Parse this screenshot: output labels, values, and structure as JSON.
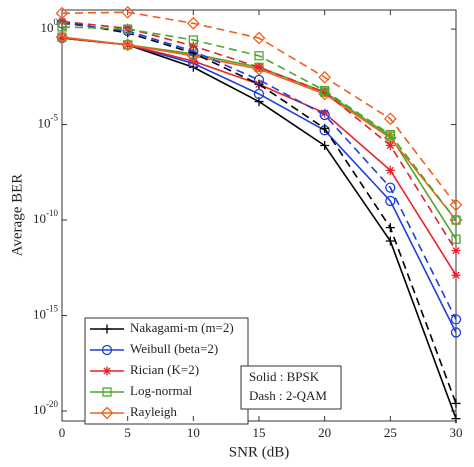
{
  "chart_data": {
    "type": "line",
    "xlabel": "SNR (dB)",
    "ylabel": "Average BER",
    "x": [
      0,
      5,
      10,
      15,
      20,
      25,
      30
    ],
    "xlim": [
      0,
      30
    ],
    "xticks": [
      0,
      5,
      10,
      15,
      20,
      25,
      30
    ],
    "ylim": [
      3e-21,
      10
    ],
    "log_y": true,
    "yticks": [
      {
        "value": 1,
        "label": "10^0"
      },
      {
        "value": 1e-05,
        "label": "10^-5"
      },
      {
        "value": 1e-10,
        "label": "10^-10"
      },
      {
        "value": 1e-15,
        "label": "10^-15"
      },
      {
        "value": 1e-20,
        "label": "10^-20"
      }
    ],
    "legend": "lower left",
    "series": [
      {
        "name": "Nakagami-m (m=2)",
        "color": "#000000",
        "marker": "plus",
        "dash": false,
        "values": [
          0.34,
          0.15,
          0.01,
          0.00016,
          8e-07,
          8e-12,
          4e-21
        ]
      },
      {
        "name": "Weibull (beta=2)",
        "color": "#1d3fe0",
        "marker": "circle",
        "dash": false,
        "values": [
          0.34,
          0.15,
          0.016,
          0.0004,
          5e-06,
          1e-09,
          1.3e-16
        ]
      },
      {
        "name": "Rician (K=2)",
        "color": "#e8202a",
        "marker": "star",
        "dash": false,
        "values": [
          0.34,
          0.15,
          0.021,
          0.0013,
          4e-05,
          4e-08,
          1.3e-13
        ]
      },
      {
        "name": "Log-normal",
        "color": "#4ca82a",
        "marker": "square",
        "dash": false,
        "values": [
          0.38,
          0.15,
          0.05,
          0.01,
          0.0005,
          2.5e-06,
          1e-11
        ]
      },
      {
        "name": "Rayleigh",
        "color": "#f06020",
        "marker": "diamond",
        "dash": false,
        "values": [
          0.38,
          0.15,
          0.04,
          0.008,
          0.0004,
          2e-06,
          1e-10
        ]
      },
      {
        "color": "#000000",
        "dash": true,
        "values": [
          2.5,
          0.63,
          0.056,
          0.0013,
          6.3e-06,
          4e-11,
          2.5e-20
        ]
      },
      {
        "color": "#1d3fe0",
        "dash": true,
        "values": [
          2,
          0.8,
          0.07,
          0.0022,
          3.2e-05,
          5e-09,
          6.3e-16
        ]
      },
      {
        "color": "#e8202a",
        "dash": true,
        "values": [
          2.5,
          1.1,
          0.13,
          0.01,
          0.0005,
          8e-07,
          2.5e-12
        ]
      },
      {
        "color": "#4ca82a",
        "dash": true,
        "values": [
          1.3,
          1,
          0.27,
          0.04,
          0.0006,
          3e-06,
          1e-10
        ]
      },
      {
        "color": "#f06020",
        "dash": true,
        "values": [
          6.8,
          7.6,
          2,
          0.34,
          0.003,
          2e-05,
          6.3e-10
        ]
      }
    ],
    "annotation": [
      "Solid : BPSK",
      "Dash : 2-QAM"
    ]
  }
}
